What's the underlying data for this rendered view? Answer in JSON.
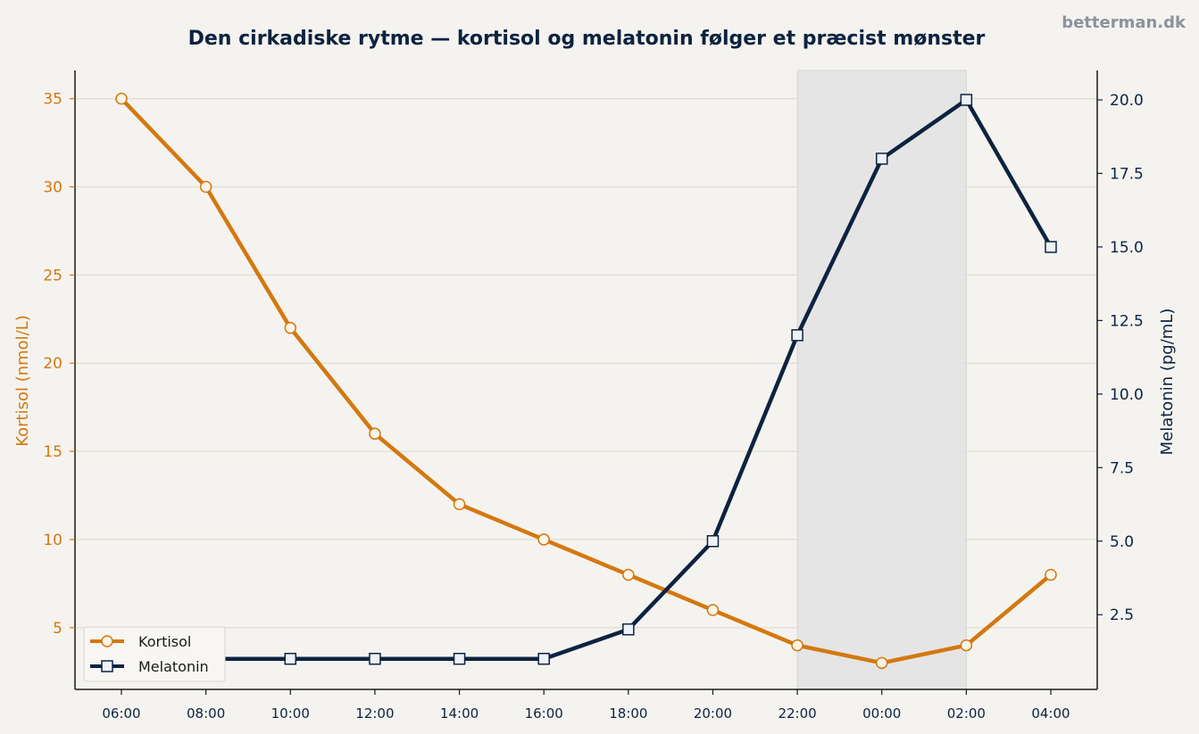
{
  "watermark": "betterman.dk",
  "chart_data": {
    "type": "line",
    "title": "Den cirkadiske rytme — kortisol og melatonin følger et præcist mønster",
    "categories": [
      "06:00",
      "08:00",
      "10:00",
      "12:00",
      "14:00",
      "16:00",
      "18:00",
      "20:00",
      "22:00",
      "00:00",
      "02:00",
      "04:00"
    ],
    "y_left": {
      "label": "Kortisol (nmol/L)",
      "range": [
        1.5,
        36.6
      ],
      "ticks": [
        5,
        10,
        15,
        20,
        25,
        30,
        35
      ]
    },
    "y_right": {
      "label": "Melatonin (pg/mL)",
      "range": [
        -0.04,
        21.0
      ],
      "ticks": [
        "2.5",
        "5.0",
        "7.5",
        "10.0",
        "12.5",
        "15.0",
        "17.5",
        "20.0"
      ]
    },
    "series": [
      {
        "name": "Kortisol",
        "axis": "left",
        "color": "#d4780f",
        "marker": "circle",
        "values": [
          35,
          30,
          22,
          16,
          12,
          10,
          8,
          6,
          4,
          3,
          4,
          8
        ]
      },
      {
        "name": "Melatonin",
        "axis": "right",
        "color": "#0c2340",
        "marker": "square",
        "values": [
          1,
          1,
          1,
          1,
          1,
          1,
          2,
          5,
          12,
          18,
          20,
          15
        ]
      }
    ],
    "shaded_region": {
      "from": "22:00",
      "to": "02:00",
      "color": "#e4e4e4"
    },
    "grid": true,
    "legend_position": "lower-left"
  }
}
